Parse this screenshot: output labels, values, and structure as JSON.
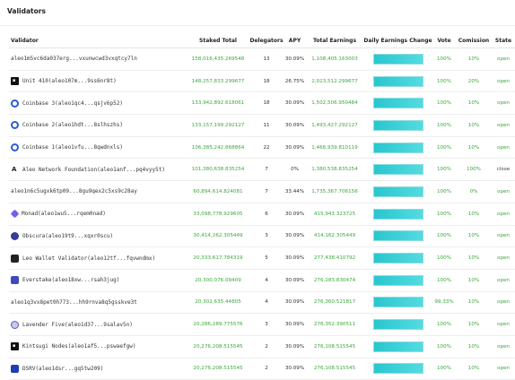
{
  "header": {
    "title": "Validators"
  },
  "columns": [
    "Validator",
    "Staked Total",
    "Delegators",
    "APY",
    "Total Earnings",
    "Daily Earnings Change",
    "Vote",
    "Comission",
    "State"
  ],
  "rows": [
    {
      "icon": "",
      "name": "aleo1m5vc6da037erg...vxunwcwd3vxqtcy7ln",
      "staked": "158,016,435.269548",
      "delegators": "13",
      "apy": "30.09%",
      "earnings": "1,108,405.163003",
      "vote": "100%",
      "commission": "10%",
      "state": "open"
    },
    {
      "icon": "unit-icon",
      "name": "Unit 410(aleo107m...9ss6nr8t)",
      "staked": "148,257,833.299677",
      "delegators": "18",
      "apy": "26.75%",
      "earnings": "2,023,512.299677",
      "vote": "100%",
      "commission": "20%",
      "state": "open"
    },
    {
      "icon": "coinbase-icon",
      "name": "Coinbase 3(aleo1qc4...qsjv6p52)",
      "staked": "133,942,892.618061",
      "delegators": "18",
      "apy": "30.09%",
      "earnings": "1,502,506.950484",
      "vote": "100%",
      "commission": "10%",
      "state": "open"
    },
    {
      "icon": "coinbase-icon",
      "name": "Coinbase 2(aleo1hdt...8slhszhs)",
      "staked": "133,157,199.292127",
      "delegators": "11",
      "apy": "30.09%",
      "earnings": "1,493,427.292127",
      "vote": "100%",
      "commission": "10%",
      "state": "open"
    },
    {
      "icon": "coinbase-icon",
      "name": "Coinbase 1(aleo1vfu...8qwdnxls)",
      "staked": "106,385,242.868864",
      "delegators": "22",
      "apy": "30.09%",
      "earnings": "1,466,939.810119",
      "vote": "100%",
      "commission": "10%",
      "state": "open"
    },
    {
      "icon": "aleo-icon",
      "name": "Aleo Network Foundation(aleo1anf...pq4vyy5t)",
      "staked": "101,380,638.835254",
      "delegators": "7",
      "apy": "0%",
      "earnings": "1,380,538.835254",
      "vote": "100%",
      "commission": "100%",
      "state": "close"
    },
    {
      "icon": "",
      "name": "aleo1n6c5ugxk6tp09...8gu9qex2c5xs9c28ay",
      "staked": "60,894,614.824081",
      "delegators": "7",
      "apy": "33.44%",
      "earnings": "1,735,367.706156",
      "vote": "100%",
      "commission": "0%",
      "state": "open"
    },
    {
      "icon": "monad-icon",
      "name": "Monad(aleo1wu5...rqem0nad)",
      "staked": "33,098,778.929605",
      "delegators": "6",
      "apy": "30.09%",
      "earnings": "415,943.323725",
      "vote": "100%",
      "commission": "10%",
      "state": "open"
    },
    {
      "icon": "obscura-icon",
      "name": "Obscura(aleo19t9...xqxr0scu)",
      "staked": "30,414,262.305449",
      "delegators": "3",
      "apy": "30.09%",
      "earnings": "414,162.305449",
      "vote": "100%",
      "commission": "10%",
      "state": "open"
    },
    {
      "icon": "leo-wallet-icon",
      "name": "Leo Wallet Validator(aleo12tf...fqvwndmx)",
      "staked": "20,333,617.784319",
      "delegators": "5",
      "apy": "30.09%",
      "earnings": "277,438.410792",
      "vote": "100%",
      "commission": "10%",
      "state": "open"
    },
    {
      "icon": "everstake-icon",
      "name": "Everstake(aleo18xw...rsah3jug)",
      "staked": "20,300,076.09409",
      "delegators": "4",
      "apy": "30.09%",
      "earnings": "276,283.830474",
      "vote": "100%",
      "commission": "10%",
      "state": "open"
    },
    {
      "icon": "",
      "name": "aleo1q3vx8pet0h773...hh9rnva8q5gsskve3t",
      "staked": "20,302,635.44805",
      "delegators": "4",
      "apy": "30.09%",
      "earnings": "276,360.521817",
      "vote": "99.33%",
      "commission": "10%",
      "state": "open"
    },
    {
      "icon": "lavender-icon",
      "name": "Lavender Five(aleo1d37...9salav5n)",
      "staked": "20,286,289.775576",
      "delegators": "3",
      "apy": "30.09%",
      "earnings": "276,352.390511",
      "vote": "100%",
      "commission": "10%",
      "state": "open"
    },
    {
      "icon": "kintsugi-icon",
      "name": "Kintsugi Nodes(aleo1af5...pswaefgw)",
      "staked": "20,276,208.515545",
      "delegators": "2",
      "apy": "30.09%",
      "earnings": "276,108.515545",
      "vote": "100%",
      "commission": "10%",
      "state": "open"
    },
    {
      "icon": "dsrv-icon",
      "name": "DSRV(aleo1dsr...gq5tw209)",
      "staked": "20,276,208.515545",
      "delegators": "2",
      "apy": "30.09%",
      "earnings": "276,108.515545",
      "vote": "100%",
      "commission": "10%",
      "state": "open"
    }
  ]
}
